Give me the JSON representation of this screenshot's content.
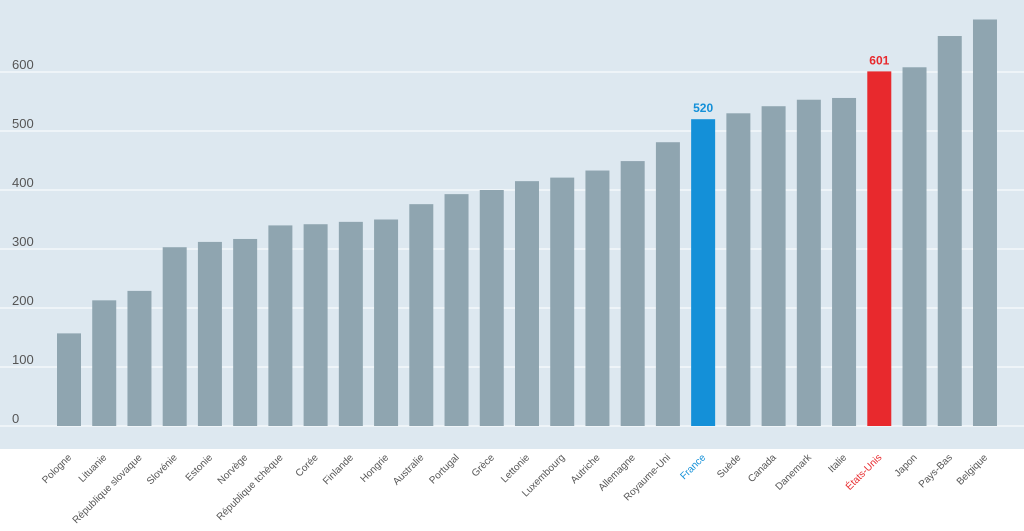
{
  "chart_data": {
    "type": "bar",
    "categories": [
      "Pologne",
      "Lituanie",
      "République slovaque",
      "Slovénie",
      "Estonie",
      "Norvège",
      "République tchèque",
      "Corée",
      "Finlande",
      "Hongrie",
      "Australie",
      "Portugal",
      "Grèce",
      "Lettonie",
      "Luxembourg",
      "Autriche",
      "Allemagne",
      "Royaume-Uni",
      "France",
      "Suède",
      "Canada",
      "Danemark",
      "Italie",
      "États-Unis",
      "Japon",
      "Pays-Bas",
      "Belgique"
    ],
    "values": [
      157,
      213,
      229,
      303,
      312,
      317,
      340,
      342,
      346,
      350,
      376,
      393,
      400,
      415,
      421,
      433,
      449,
      481,
      520,
      530,
      542,
      553,
      556,
      601,
      608,
      661,
      689
    ],
    "title": "",
    "xlabel": "",
    "ylabel": "",
    "ylim": [
      -20,
      700
    ],
    "yticks": [
      0,
      100,
      200,
      300,
      400,
      500,
      600
    ],
    "grid": true,
    "legend": "none",
    "colors": {
      "background": "#dde8f0",
      "bar": "#8fa5b0",
      "grid": "#ffffff",
      "highlight_france": "#1490d8",
      "highlight_usa": "#e8292d"
    },
    "highlights": [
      {
        "category": "France",
        "color": "#1490d8",
        "label": "520"
      },
      {
        "category": "États-Unis",
        "color": "#e8292d",
        "label": "601"
      }
    ]
  }
}
